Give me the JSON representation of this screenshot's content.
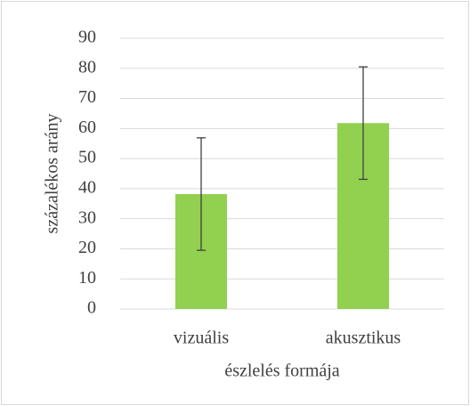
{
  "chart_data": {
    "type": "bar",
    "categories": [
      "vizuális",
      "akusztikus"
    ],
    "values": [
      38.2,
      61.8
    ],
    "errors": [
      18.7,
      18.7
    ],
    "color": "#92d050",
    "error_color": "#404040",
    "ylim": [
      0,
      90
    ],
    "yticks": [
      0,
      10,
      20,
      30,
      40,
      50,
      60,
      70,
      80,
      90
    ],
    "grid": true,
    "y_label": "százalékos arány",
    "x_label": "észlelés formája"
  }
}
